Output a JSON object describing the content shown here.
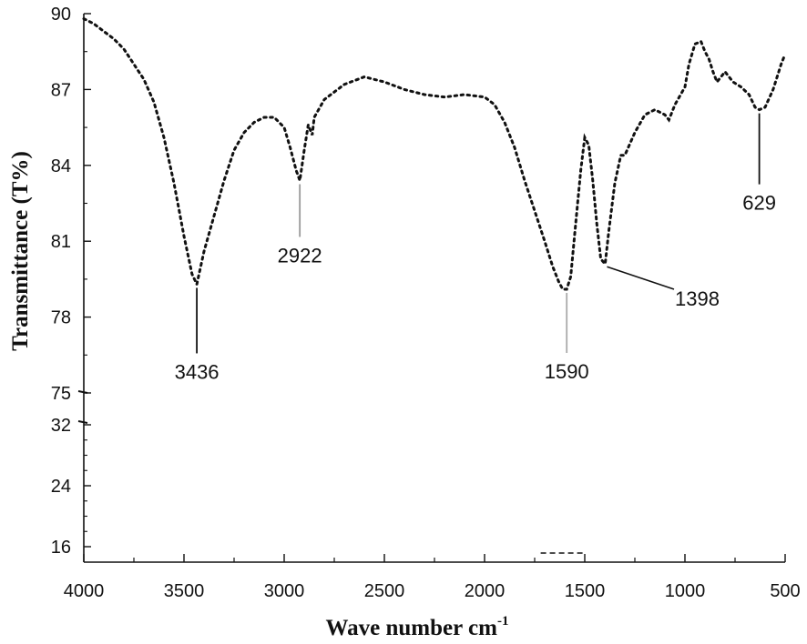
{
  "chart_data": {
    "type": "line",
    "xlabel": "Wave number cm",
    "xlabel_superscript": "-1",
    "ylabel": "Transmittance (T%)",
    "x_reversed": true,
    "xlim": [
      4000,
      500
    ],
    "grid": false,
    "legend": "none",
    "line_style": "dotted",
    "x_ticks": [
      "4000",
      "3500",
      "3000",
      "2500",
      "2000",
      "1500",
      "1000",
      "500"
    ],
    "y_ticks_upper": [
      "90",
      "87",
      "84",
      "81",
      "78",
      "75"
    ],
    "y_ticks_lower": [
      "32",
      "24",
      "16"
    ],
    "upper_ylim": [
      75,
      90
    ],
    "lower_ylim": [
      14,
      32
    ],
    "series": [
      {
        "x": [
          4000,
          3950,
          3900,
          3850,
          3800,
          3750,
          3700,
          3650,
          3600,
          3550,
          3500,
          3460,
          3436,
          3400,
          3350,
          3300,
          3250,
          3200,
          3150,
          3100,
          3050,
          3000,
          2970,
          2940,
          2922,
          2900,
          2880,
          2860,
          2850,
          2800,
          2700,
          2600,
          2500,
          2400,
          2300,
          2200,
          2100,
          2000,
          1950,
          1900,
          1850,
          1800,
          1750,
          1700,
          1660,
          1630,
          1610,
          1590,
          1570,
          1550,
          1520,
          1500,
          1480,
          1460,
          1440,
          1420,
          1398,
          1380,
          1350,
          1320,
          1300,
          1250,
          1200,
          1150,
          1100,
          1080,
          1050,
          1000,
          980,
          950,
          920,
          900,
          880,
          860,
          840,
          800,
          760,
          720,
          680,
          650,
          629,
          600,
          560,
          520,
          500
        ],
        "y": [
          89.8,
          89.6,
          89.3,
          89.0,
          88.6,
          88.0,
          87.4,
          86.5,
          85.1,
          83.3,
          81.2,
          79.7,
          79.3,
          80.6,
          82.0,
          83.4,
          84.6,
          85.3,
          85.7,
          85.9,
          85.9,
          85.5,
          84.7,
          83.8,
          83.4,
          84.6,
          85.6,
          85.2,
          85.9,
          86.6,
          87.2,
          87.5,
          87.3,
          87.0,
          86.8,
          86.7,
          86.8,
          86.7,
          86.4,
          85.7,
          84.7,
          83.4,
          82.2,
          81.0,
          80.0,
          79.4,
          79.1,
          79.1,
          79.6,
          81.3,
          83.8,
          85.1,
          84.8,
          83.4,
          81.7,
          80.3,
          80.1,
          81.4,
          83.3,
          84.4,
          84.4,
          85.3,
          86.0,
          86.2,
          86.0,
          85.8,
          86.4,
          87.1,
          88.0,
          88.8,
          88.9,
          88.5,
          88.2,
          87.7,
          87.3,
          87.7,
          87.3,
          87.1,
          86.8,
          86.3,
          86.2,
          86.3,
          87.0,
          88.0,
          88.4
        ]
      }
    ],
    "annotations": [
      {
        "label": "3436",
        "x": 3436,
        "y": 79.3
      },
      {
        "label": "2922",
        "x": 2922,
        "y": 83.4
      },
      {
        "label": "1590",
        "x": 1590,
        "y": 79.1
      },
      {
        "label": "1398",
        "x": 1398,
        "y": 80.1
      },
      {
        "label": "629",
        "x": 629,
        "y": 86.2
      }
    ]
  }
}
